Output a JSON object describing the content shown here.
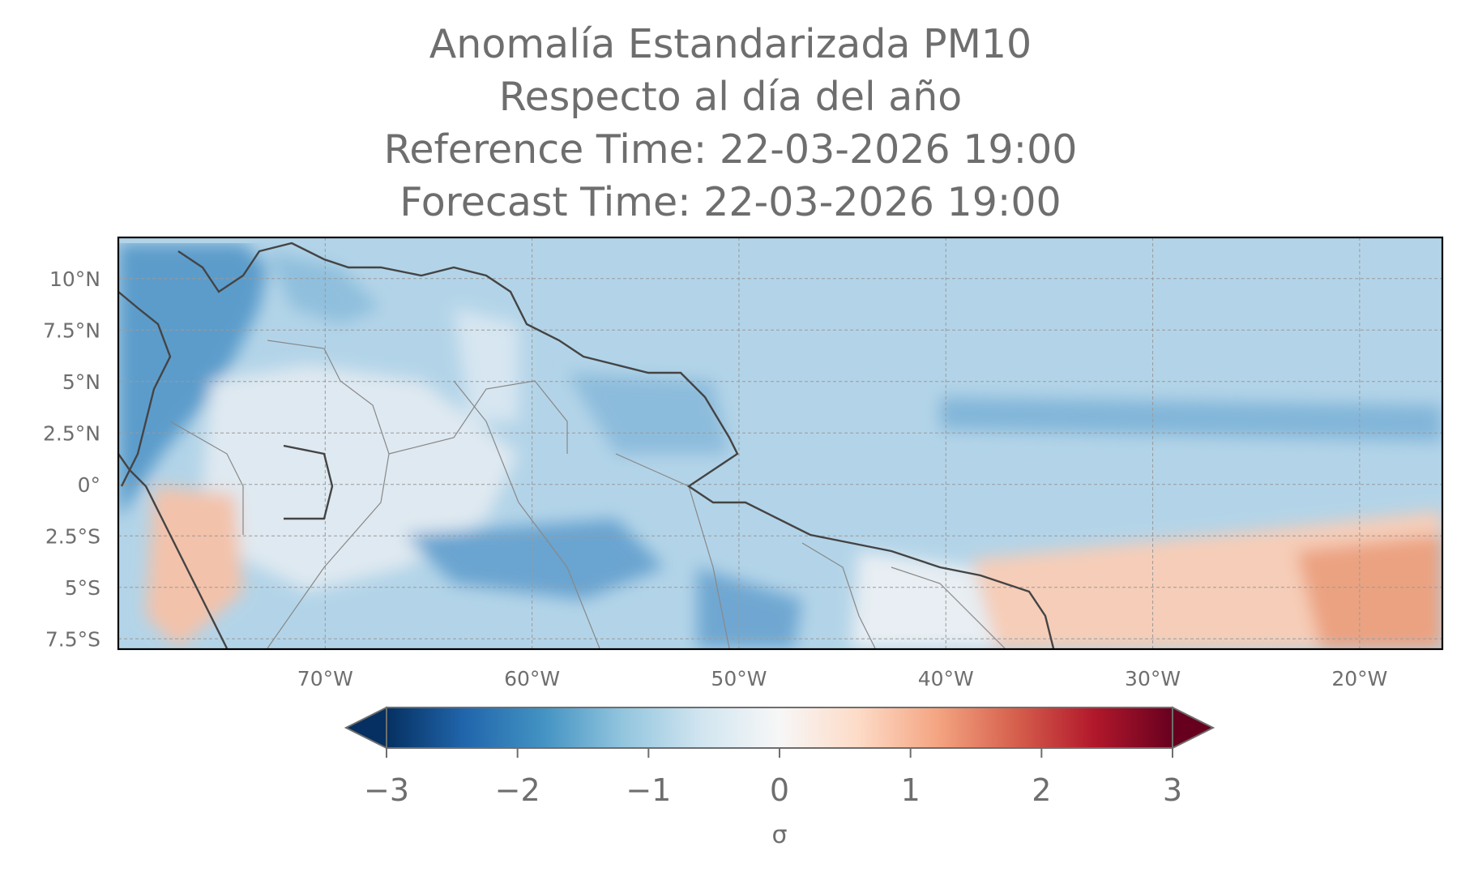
{
  "title": {
    "line1": "Anomalía Estandarizada PM10",
    "line2": "Respecto al día del año",
    "line3": "Reference Time: 22-03-2026 19:00",
    "line4": "Forecast Time: 22-03-2026 19:00"
  },
  "map": {
    "extent": {
      "lon": [
        -80,
        -16
      ],
      "lat": [
        -8,
        12
      ]
    },
    "lat_ticks": [
      {
        "value": 10,
        "label": "10°N"
      },
      {
        "value": 7.5,
        "label": "7.5°N"
      },
      {
        "value": 5,
        "label": "5°N"
      },
      {
        "value": 2.5,
        "label": "2.5°N"
      },
      {
        "value": 0,
        "label": "0°"
      },
      {
        "value": -2.5,
        "label": "2.5°S"
      },
      {
        "value": -5,
        "label": "5°S"
      },
      {
        "value": -7.5,
        "label": "7.5°S"
      }
    ],
    "lon_ticks": [
      {
        "value": -70,
        "label": "70°W"
      },
      {
        "value": -60,
        "label": "60°W"
      },
      {
        "value": -50,
        "label": "50°W"
      },
      {
        "value": -40,
        "label": "40°W"
      },
      {
        "value": -30,
        "label": "30°W"
      },
      {
        "value": -20,
        "label": "20°W"
      }
    ],
    "gridlines": true,
    "colormap": "RdBu_r"
  },
  "colorbar": {
    "min": -3,
    "max": 3,
    "ticks": [
      {
        "value": -3,
        "label": "−3"
      },
      {
        "value": -2,
        "label": "−2"
      },
      {
        "value": -1,
        "label": "−1"
      },
      {
        "value": 0,
        "label": "0"
      },
      {
        "value": 1,
        "label": "1"
      },
      {
        "value": 2,
        "label": "2"
      },
      {
        "value": 3,
        "label": "3"
      }
    ],
    "label": "σ",
    "extend": "both",
    "colors": [
      "#053061",
      "#2166ac",
      "#4393c3",
      "#92c5de",
      "#d1e5f0",
      "#f7f7f7",
      "#fddbc7",
      "#f4a582",
      "#d6604d",
      "#b2182b",
      "#67001f"
    ]
  }
}
